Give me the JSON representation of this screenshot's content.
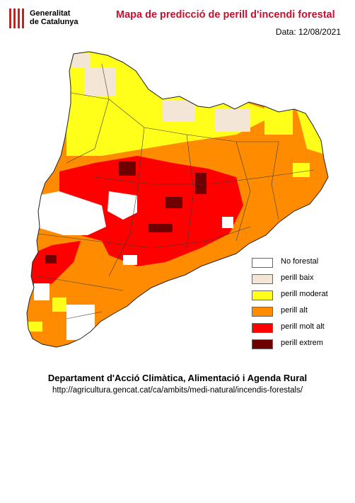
{
  "header": {
    "logo_line1": "Generalitat",
    "logo_line2": "de Catalunya",
    "title": "Mapa de predicció de perill d'incendi forestal",
    "date": "Data: 12/08/2021"
  },
  "legend": [
    {
      "label": "No forestal",
      "color": "#ffffff"
    },
    {
      "label": "perill baix",
      "color": "#f3e6d6"
    },
    {
      "label": "perill moderat",
      "color": "#ffff1a"
    },
    {
      "label": "perill alt",
      "color": "#ff8c00"
    },
    {
      "label": "perill molt alt",
      "color": "#ff0000"
    },
    {
      "label": "perill extrem",
      "color": "#6e0000"
    }
  ],
  "footer": {
    "department": "Departament d'Acció Climàtica, Alimentació i Agenda Rural",
    "url": "http://agricultura.gencat.cat/ca/ambits/medi-natural/incendis-forestals/"
  }
}
